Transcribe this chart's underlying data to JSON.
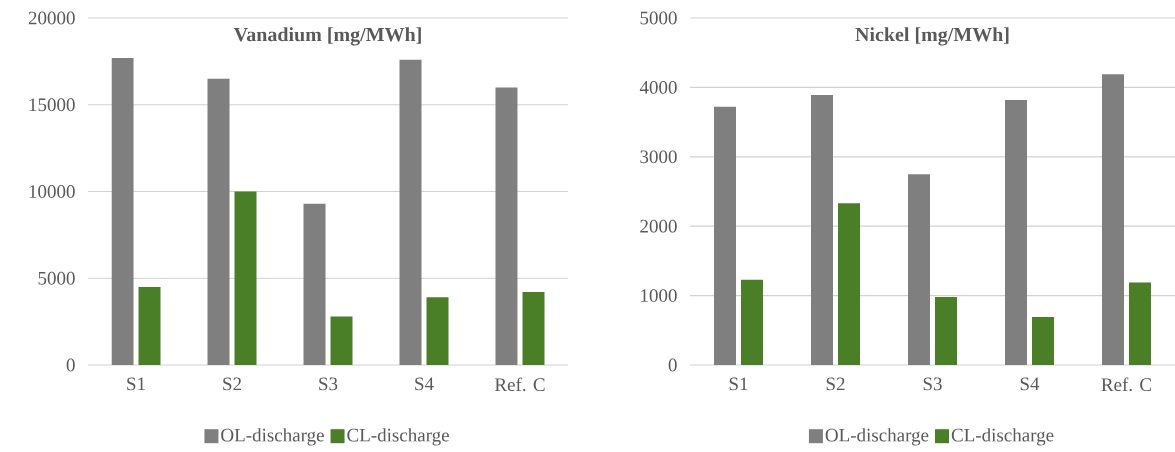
{
  "chart_data": [
    {
      "type": "bar",
      "title": "Vanadium [mg/MWh]",
      "categories": [
        "S1",
        "S2",
        "S3",
        "S4",
        "Ref. C"
      ],
      "series": [
        {
          "name": "OL-discharge",
          "color": "#7f7f7f",
          "values": [
            17700,
            16500,
            9300,
            17600,
            16000
          ]
        },
        {
          "name": "CL-discharge",
          "color": "#4a7f28",
          "values": [
            4500,
            10000,
            2800,
            3900,
            4200
          ]
        }
      ],
      "ylim": [
        0,
        20000
      ],
      "yticks": [
        0,
        5000,
        10000,
        15000,
        20000
      ],
      "grid": "y",
      "legend": "bottom"
    },
    {
      "type": "bar",
      "title": "Nickel [mg/MWh]",
      "categories": [
        "S1",
        "S2",
        "S3",
        "S4",
        "Ref. C"
      ],
      "series": [
        {
          "name": "OL-discharge",
          "color": "#7f7f7f",
          "values": [
            3720,
            3890,
            2750,
            3820,
            4190
          ]
        },
        {
          "name": "CL-discharge",
          "color": "#4a7f28",
          "values": [
            1230,
            2330,
            980,
            690,
            1190
          ]
        }
      ],
      "ylim": [
        0,
        5000
      ],
      "yticks": [
        0,
        1000,
        2000,
        3000,
        4000,
        5000
      ],
      "grid": "y",
      "legend": "bottom"
    }
  ]
}
